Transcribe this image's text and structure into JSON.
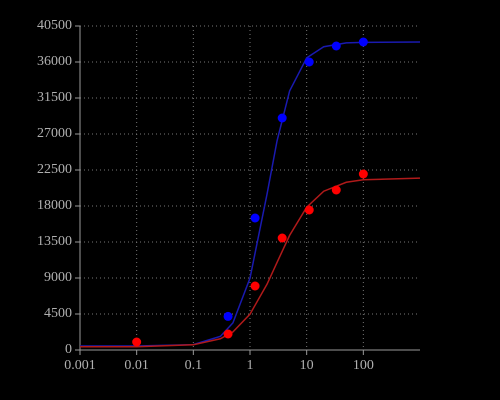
{
  "chart_data": {
    "type": "scatter",
    "log_x": true,
    "grid": true,
    "xlim": [
      0.001,
      1000
    ],
    "xticks": [
      0.001,
      0.01,
      0.1,
      1,
      10,
      100
    ],
    "ylim": [
      0,
      40500
    ],
    "yticks": [
      0,
      4500,
      9000,
      13500,
      18000,
      22500,
      27000,
      31500,
      36000,
      40500
    ],
    "series": [
      {
        "color": "#0000ff",
        "x": [
          0.41,
          1.23,
          3.7,
          11.1,
          33.3,
          100
        ],
        "values": [
          4200,
          16500,
          29000,
          36000,
          38000,
          38500
        ]
      },
      {
        "color": "#ff0000",
        "x": [
          0.01,
          0.41,
          1.23,
          3.7,
          11.1,
          33.3,
          100
        ],
        "values": [
          1000,
          2000,
          8000,
          14000,
          17500,
          20000,
          22000
        ]
      }
    ],
    "fits": [
      {
        "color": "#1a1ab0",
        "x": [
          0.001,
          0.01,
          0.1,
          0.3,
          0.5,
          1,
          2,
          3,
          5,
          10,
          20,
          50,
          100,
          1000
        ],
        "values": [
          500,
          503,
          673,
          1709,
          3396,
          8982,
          19500,
          26140,
          32380,
          36510,
          37908,
          38384,
          38460,
          38500
        ]
      },
      {
        "color": "#b01a1a",
        "x": [
          0.001,
          0.01,
          0.1,
          0.3,
          0.5,
          1,
          2,
          3,
          5,
          10,
          20,
          50,
          100,
          1000
        ],
        "values": [
          400,
          413,
          650,
          1405,
          2267,
          4481,
          8232,
          10950,
          14328,
          17852,
          19847,
          20966,
          21281,
          21480
        ]
      }
    ]
  }
}
